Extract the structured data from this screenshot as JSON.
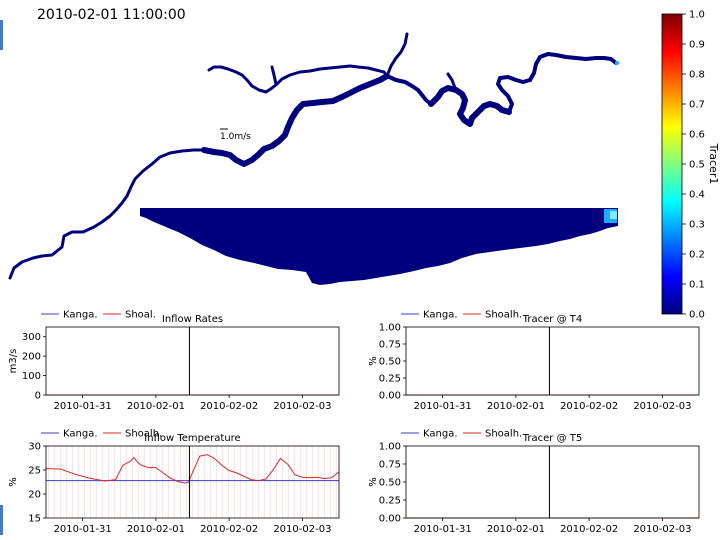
{
  "timestamp": "2010-02-01 11:00:00",
  "map": {
    "scale_label": "1.0m/s",
    "colorbar": {
      "label": "Tracer1",
      "ticks": [
        "1.0",
        "0.9",
        "0.8",
        "0.7",
        "0.6",
        "0.5",
        "0.4",
        "0.3",
        "0.2",
        "0.1",
        "0.0"
      ],
      "low_color": "#00007f",
      "high_color": "#7f0000"
    }
  },
  "chart_data": [
    {
      "id": "inflow-rates",
      "type": "line",
      "title": "Inflow Rates",
      "ylabel": "m3/s",
      "ylim": [
        0,
        350
      ],
      "yticks": [
        "0",
        "100",
        "200",
        "300"
      ],
      "xticks": [
        "2010-01-31",
        "2010-02-01",
        "2010-02-02",
        "2010-02-03"
      ],
      "xlim_days": [
        -1.5,
        2.5
      ],
      "current_time": "2010-02-01 11:00:00",
      "legend": "top-left",
      "series": [
        {
          "name": "Kanga.",
          "color": "#3b3bd1",
          "x": [
            -1.5,
            2.5
          ],
          "y": [
            0,
            0
          ]
        },
        {
          "name": "Shoal.",
          "color": "#d42a2a",
          "x": [
            -1.5,
            2.5
          ],
          "y": [
            0,
            0
          ]
        }
      ]
    },
    {
      "id": "tracer-t4",
      "type": "line",
      "title": "Tracer @ T4",
      "ylabel": "%",
      "ylim": [
        0,
        1
      ],
      "yticks": [
        "0.00",
        "0.25",
        "0.50",
        "0.75",
        "1.00"
      ],
      "xticks": [
        "2010-01-31",
        "2010-02-01",
        "2010-02-02",
        "2010-02-03"
      ],
      "xlim_days": [
        -1.5,
        2.5
      ],
      "current_time": "2010-02-01 11:00:00",
      "legend": "top-left",
      "series": [
        {
          "name": "Kanga.",
          "color": "#3b3bd1",
          "x": [
            -1.5,
            2.5
          ],
          "y": [
            0,
            0
          ]
        },
        {
          "name": "Shoalh.",
          "color": "#d42a2a",
          "x": [
            -1.5,
            2.5
          ],
          "y": [
            0,
            0
          ]
        }
      ]
    },
    {
      "id": "inflow-temperature",
      "type": "line",
      "title": "Inflow Temperature",
      "ylabel": "%",
      "ylim": [
        15,
        30
      ],
      "yticks": [
        "15",
        "20",
        "25",
        "30"
      ],
      "xticks": [
        "2010-01-31",
        "2010-02-01",
        "2010-02-02",
        "2010-02-03"
      ],
      "xlim_days": [
        -1.5,
        2.5
      ],
      "current_time": "2010-02-01 11:00:00",
      "legend": "top-left",
      "series": [
        {
          "name": "Kanga.",
          "color": "#3b3bd1",
          "x": [
            -1.5,
            2.5
          ],
          "y": [
            22.8,
            22.8
          ]
        },
        {
          "name": "Shoalh.",
          "color": "#d42a2a",
          "x": [
            -1.5,
            -1.3,
            -1.1,
            -0.9,
            -0.7,
            -0.55,
            -0.45,
            -0.35,
            -0.3,
            -0.25,
            -0.2,
            -0.1,
            0.0,
            0.1,
            0.2,
            0.3,
            0.4,
            0.45,
            0.5,
            0.6,
            0.7,
            0.8,
            0.9,
            1.0,
            1.1,
            1.2,
            1.3,
            1.4,
            1.5,
            1.6,
            1.7,
            1.8,
            1.9,
            2.0,
            2.1,
            2.2,
            2.3,
            2.4,
            2.5
          ],
          "y": [
            25.3,
            25.2,
            24.1,
            23.3,
            22.7,
            23.0,
            26.0,
            26.8,
            27.6,
            26.6,
            26.0,
            25.5,
            25.5,
            24.4,
            23.3,
            22.6,
            22.3,
            22.5,
            24.5,
            27.9,
            28.2,
            27.4,
            26.0,
            24.9,
            24.4,
            23.7,
            23.0,
            22.8,
            23.1,
            25.0,
            27.4,
            26.2,
            24.0,
            23.5,
            23.4,
            23.5,
            23.2,
            23.4,
            24.6
          ]
        }
      ]
    },
    {
      "id": "tracer-t5",
      "type": "line",
      "title": "Tracer @ T5",
      "ylabel": "%",
      "ylim": [
        0,
        1
      ],
      "yticks": [
        "0.00",
        "0.25",
        "0.50",
        "0.75",
        "1.00"
      ],
      "xticks": [
        "2010-01-31",
        "2010-02-01",
        "2010-02-02",
        "2010-02-03"
      ],
      "xlim_days": [
        -1.5,
        2.5
      ],
      "current_time": "2010-02-01 11:00:00",
      "legend": "top-left",
      "series": [
        {
          "name": "Kanga.",
          "color": "#3b3bd1",
          "x": [
            -1.5,
            2.5
          ],
          "y": [
            0,
            0
          ]
        },
        {
          "name": "Shoalh.",
          "color": "#d42a2a",
          "x": [
            -1.5,
            2.5
          ],
          "y": [
            0,
            0
          ]
        }
      ]
    }
  ]
}
